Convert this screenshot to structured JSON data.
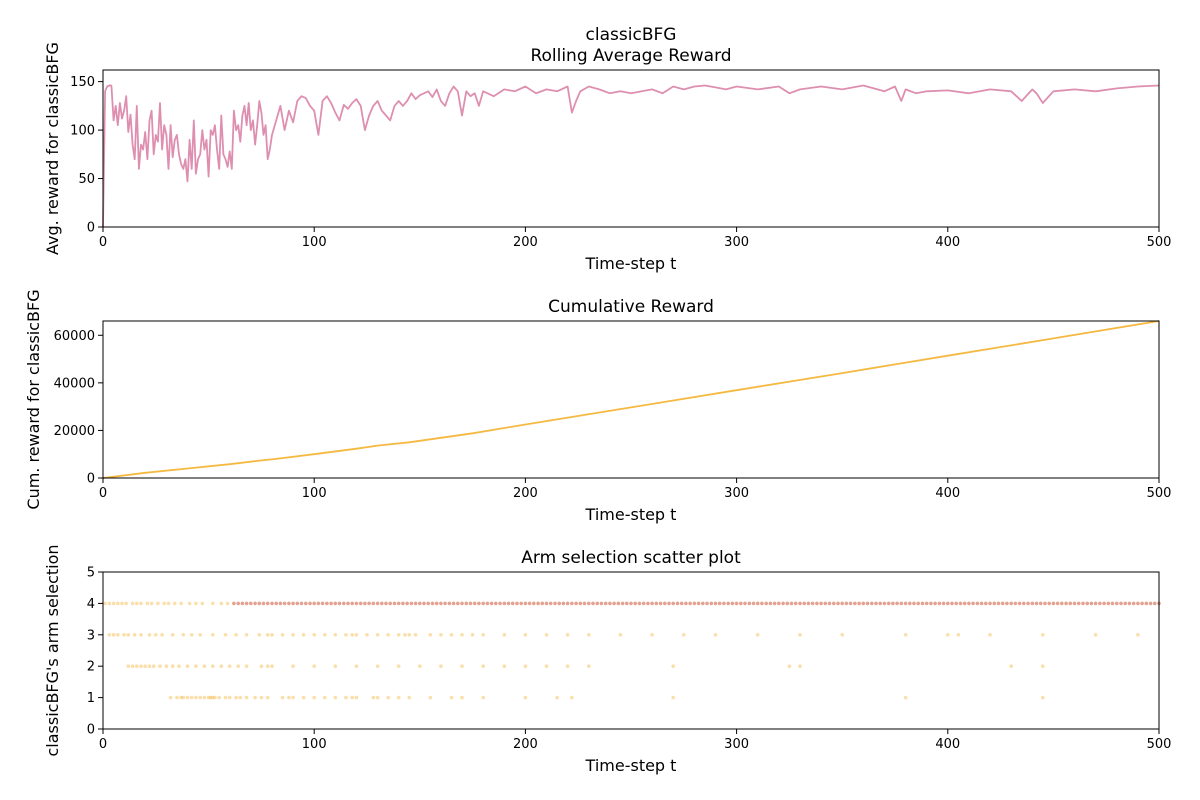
{
  "figure_title": "classicBFG",
  "chart_data": [
    {
      "type": "line",
      "title": "Rolling Average Reward",
      "xlabel": "Time-step t",
      "ylabel": "Avg. reward for classicBFG",
      "xlim": [
        0,
        500
      ],
      "ylim": [
        0,
        162
      ],
      "xticks": [
        "0",
        "100",
        "200",
        "300",
        "400",
        "500"
      ],
      "yticks": [
        "0",
        "50",
        "100",
        "150"
      ],
      "color": "#de8fb0",
      "series": [
        {
          "x": [
            0,
            1,
            2,
            3,
            4,
            5,
            6,
            7,
            8,
            9,
            10,
            11,
            12,
            13,
            14,
            15,
            16,
            17,
            18,
            19,
            20,
            21,
            22,
            23,
            24,
            25,
            26,
            27,
            28,
            29,
            30,
            31,
            32,
            33,
            34,
            35,
            36,
            37,
            38,
            39,
            40,
            41,
            42,
            43,
            44,
            45,
            46,
            47,
            48,
            49,
            50,
            51,
            52,
            53,
            54,
            55,
            56,
            57,
            58,
            59,
            60,
            61,
            62,
            63,
            64,
            65,
            66,
            67,
            68,
            69,
            70,
            71,
            72,
            73,
            74,
            75,
            76,
            77,
            78,
            79,
            80,
            82,
            84,
            86,
            88,
            90,
            92,
            94,
            96,
            98,
            100,
            102,
            104,
            106,
            108,
            110,
            112,
            114,
            116,
            118,
            120,
            122,
            124,
            126,
            128,
            130,
            132,
            134,
            136,
            138,
            140,
            142,
            144,
            146,
            148,
            150,
            152,
            154,
            156,
            158,
            160,
            162,
            164,
            166,
            168,
            170,
            172,
            174,
            176,
            178,
            180,
            185,
            190,
            195,
            200,
            205,
            210,
            215,
            220,
            222,
            224,
            226,
            230,
            235,
            240,
            245,
            250,
            255,
            260,
            265,
            270,
            275,
            280,
            285,
            290,
            295,
            300,
            310,
            320,
            325,
            330,
            340,
            350,
            360,
            370,
            375,
            378,
            380,
            385,
            390,
            400,
            410,
            420,
            430,
            435,
            440,
            442,
            445,
            450,
            460,
            470,
            480,
            490,
            500
          ],
          "values": [
            0,
            140,
            145,
            146,
            146,
            110,
            125,
            105,
            128,
            112,
            120,
            135,
            98,
            116,
            85,
            70,
            125,
            60,
            85,
            80,
            98,
            70,
            110,
            120,
            75,
            95,
            88,
            128,
            80,
            105,
            95,
            60,
            105,
            72,
            90,
            95,
            75,
            65,
            60,
            70,
            47,
            90,
            60,
            110,
            55,
            70,
            75,
            100,
            80,
            90,
            52,
            100,
            95,
            105,
            80,
            60,
            115,
            75,
            70,
            62,
            78,
            60,
            120,
            100,
            105,
            88,
            115,
            125,
            105,
            128,
            100,
            110,
            85,
            105,
            130,
            118,
            95,
            105,
            70,
            80,
            95,
            110,
            125,
            100,
            120,
            108,
            130,
            135,
            133,
            125,
            120,
            95,
            130,
            135,
            128,
            118,
            110,
            126,
            122,
            128,
            132,
            125,
            100,
            115,
            125,
            130,
            120,
            115,
            110,
            125,
            130,
            125,
            130,
            138,
            132,
            136,
            138,
            140,
            134,
            142,
            130,
            125,
            138,
            145,
            140,
            115,
            140,
            135,
            138,
            125,
            140,
            135,
            142,
            140,
            145,
            138,
            142,
            140,
            145,
            118,
            130,
            140,
            145,
            142,
            138,
            140,
            138,
            140,
            142,
            138,
            145,
            142,
            145,
            146,
            144,
            142,
            145,
            142,
            145,
            138,
            142,
            145,
            142,
            146,
            140,
            145,
            130,
            142,
            138,
            140,
            141,
            138,
            142,
            140,
            130,
            142,
            138,
            128,
            140,
            142,
            140,
            143,
            145,
            146
          ]
        }
      ]
    },
    {
      "type": "line",
      "title": "Cumulative Reward",
      "xlabel": "Time-step t",
      "ylabel": "Cum. reward for classicBFG",
      "xlim": [
        0,
        500
      ],
      "ylim": [
        0,
        66000
      ],
      "xticks": [
        "0",
        "100",
        "200",
        "300",
        "400",
        "500"
      ],
      "yticks": [
        "0",
        "20000",
        "40000",
        "60000"
      ],
      "color": "#f5b942",
      "series": [
        {
          "x": [
            0,
            20,
            40,
            60,
            75,
            80,
            100,
            120,
            130,
            145,
            175,
            200,
            250,
            300,
            350,
            400,
            450,
            500
          ],
          "values": [
            0,
            2200,
            4000,
            5800,
            7400,
            7800,
            10000,
            12300,
            13600,
            15000,
            18800,
            22500,
            29700,
            36900,
            44100,
            51400,
            58700,
            66000
          ]
        }
      ]
    },
    {
      "type": "scatter",
      "title": "Arm selection scatter plot",
      "xlabel": "Time-step t",
      "ylabel": "classicBFG's arm selection",
      "xlim": [
        0,
        500
      ],
      "ylim": [
        0,
        5
      ],
      "xticks": [
        "0",
        "100",
        "200",
        "300",
        "400",
        "500"
      ],
      "yticks": [
        "0",
        "1",
        "2",
        "3",
        "4",
        "5"
      ],
      "color": "#f5b942",
      "series": [
        {
          "arm": 4,
          "x": [
            1,
            3,
            5,
            7,
            9,
            11,
            14,
            16,
            18,
            21,
            23,
            26,
            29,
            31,
            34,
            37,
            41,
            44,
            47,
            52,
            56,
            59,
            62,
            64,
            66,
            68,
            70,
            72,
            74,
            76,
            78,
            80,
            82,
            84,
            86,
            88,
            90,
            92,
            94,
            96,
            98,
            100,
            102,
            104,
            106,
            108,
            110,
            112,
            114,
            116,
            118,
            120,
            122,
            124,
            126,
            128,
            130,
            132,
            134,
            136,
            138,
            140,
            142,
            144,
            146,
            148,
            150,
            152,
            154,
            156,
            158,
            160,
            162,
            164,
            166,
            168,
            170,
            172,
            174,
            176,
            178,
            180,
            182,
            184,
            186,
            188,
            190,
            192,
            194,
            196,
            198,
            200,
            202,
            204,
            206,
            208,
            210,
            212,
            214,
            216,
            218,
            220,
            222,
            224,
            226,
            228,
            230,
            232,
            234,
            236,
            238,
            240,
            242,
            244,
            246,
            248,
            250,
            252,
            254,
            256,
            258,
            260,
            262,
            264,
            266,
            268,
            270,
            272,
            274,
            276,
            278,
            280,
            282,
            284,
            286,
            288,
            290,
            292,
            294,
            296,
            298,
            300,
            302,
            304,
            306,
            308,
            310,
            312,
            314,
            316,
            318,
            320,
            322,
            324,
            326,
            328,
            330,
            332,
            334,
            336,
            338,
            340,
            342,
            344,
            346,
            348,
            350,
            352,
            354,
            356,
            358,
            360,
            362,
            364,
            366,
            368,
            370,
            372,
            374,
            376,
            378,
            380,
            382,
            384,
            386,
            388,
            390,
            392,
            394,
            396,
            398,
            400,
            402,
            404,
            406,
            408,
            410,
            412,
            414,
            416,
            418,
            420,
            422,
            424,
            426,
            428,
            430,
            432,
            434,
            436,
            438,
            440,
            442,
            444,
            446,
            448,
            450,
            452,
            454,
            456,
            458,
            460,
            462,
            464,
            466,
            468,
            470,
            472,
            474,
            476,
            478,
            480,
            482,
            484,
            486,
            488,
            490,
            492,
            494,
            496,
            498,
            500
          ]
        },
        {
          "arm": 3,
          "x": [
            3,
            5,
            7,
            10,
            12,
            15,
            18,
            22,
            25,
            28,
            33,
            38,
            42,
            46,
            52,
            58,
            63,
            68,
            74,
            78,
            80,
            85,
            90,
            95,
            100,
            105,
            110,
            115,
            118,
            120,
            125,
            130,
            135,
            140,
            143,
            145,
            148,
            155,
            160,
            165,
            170,
            175,
            180,
            190,
            200,
            210,
            220,
            230,
            245,
            260,
            275,
            290,
            310,
            330,
            350,
            380,
            400,
            405,
            420,
            445,
            470,
            490
          ]
        },
        {
          "arm": 2,
          "x": [
            12,
            14,
            16,
            18,
            20,
            22,
            24,
            27,
            30,
            33,
            36,
            40,
            44,
            48,
            52,
            56,
            60,
            64,
            68,
            75,
            78,
            80,
            90,
            100,
            110,
            120,
            130,
            140,
            150,
            160,
            170,
            180,
            190,
            200,
            210,
            220,
            230,
            270,
            325,
            330,
            430,
            445
          ]
        },
        {
          "arm": 1,
          "x": [
            32,
            35,
            37,
            38,
            40,
            42,
            44,
            46,
            48,
            50,
            51,
            52,
            53,
            55,
            58,
            60,
            63,
            65,
            68,
            72,
            75,
            78,
            85,
            88,
            90,
            95,
            100,
            105,
            110,
            115,
            118,
            120,
            128,
            130,
            135,
            140,
            145,
            155,
            165,
            170,
            180,
            200,
            215,
            222,
            270,
            380,
            445
          ]
        }
      ]
    }
  ]
}
